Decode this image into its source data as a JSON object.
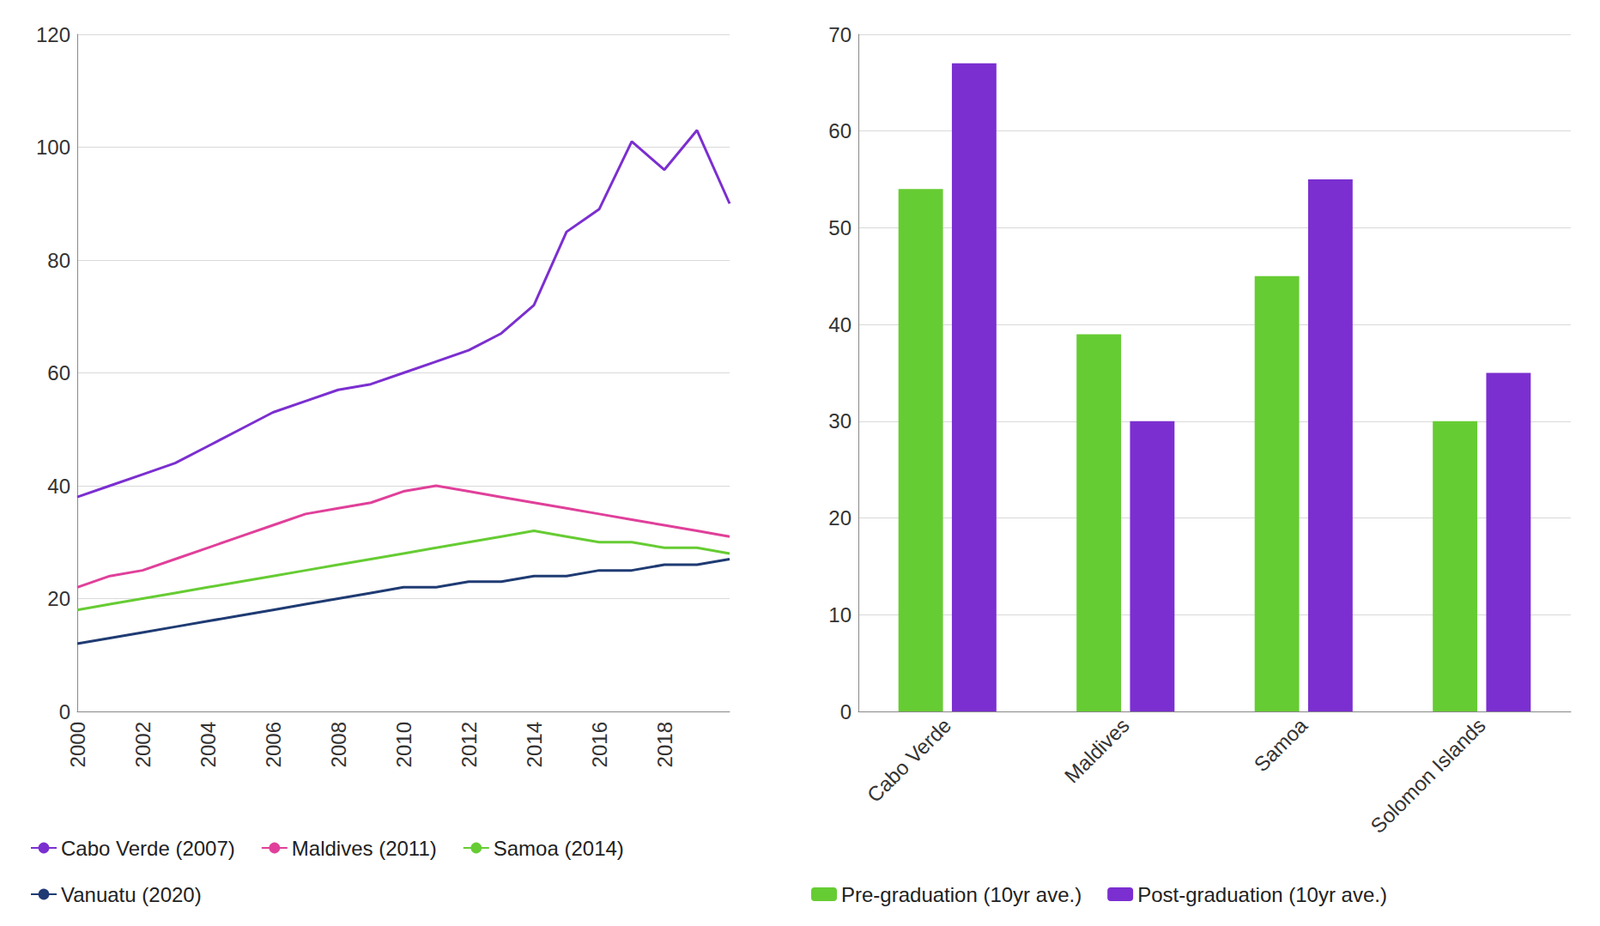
{
  "chart_data": [
    {
      "type": "line",
      "categories": [
        "2000",
        null,
        "2002",
        null,
        "2004",
        null,
        "2006",
        null,
        "2008",
        null,
        "2010",
        null,
        "2012",
        null,
        "2014",
        null,
        "2016",
        null,
        "2018",
        null,
        null
      ],
      "series": [
        {
          "name": "Cabo Verde (2007)",
          "color": "#7b2fd0",
          "values": [
            38,
            40,
            42,
            44,
            47,
            50,
            53,
            55,
            57,
            58,
            60,
            62,
            64,
            67,
            72,
            85,
            89,
            101,
            96,
            103,
            90
          ]
        },
        {
          "name": "Maldives (2011)",
          "color": "#e0409a",
          "values": [
            22,
            24,
            25,
            27,
            29,
            31,
            33,
            35,
            36,
            37,
            39,
            40,
            39,
            38,
            37,
            36,
            35,
            34,
            33,
            32,
            31
          ]
        },
        {
          "name": "Samoa (2014)",
          "color": "#66cc33",
          "values": [
            18,
            19,
            20,
            21,
            22,
            23,
            24,
            25,
            26,
            27,
            28,
            29,
            30,
            31,
            32,
            31,
            30,
            30,
            29,
            29,
            28
          ]
        },
        {
          "name": "Vanuatu (2020)",
          "color": "#1f3b73",
          "values": [
            12,
            13,
            14,
            15,
            16,
            17,
            18,
            19,
            20,
            21,
            22,
            22,
            23,
            23,
            24,
            24,
            25,
            25,
            26,
            26,
            27
          ]
        }
      ],
      "ylim": [
        0,
        120
      ],
      "yticks": [
        0,
        20,
        40,
        60,
        80,
        100,
        120
      ],
      "grid": true,
      "legend": "bottom"
    },
    {
      "type": "bar",
      "categories": [
        "Cabo Verde",
        "Maldives",
        "Samoa",
        "Solomon Islands"
      ],
      "series": [
        {
          "name": "Pre-graduation (10yr ave.)",
          "color": "#66cc33",
          "values": [
            54,
            39,
            45,
            30
          ]
        },
        {
          "name": "Post-graduation (10yr ave.)",
          "color": "#7b2fd0",
          "values": [
            67,
            30,
            55,
            35
          ]
        }
      ],
      "ylim": [
        0,
        70
      ],
      "yticks": [
        0,
        10,
        20,
        30,
        40,
        50,
        60,
        70
      ],
      "grid": true,
      "legend": "bottom"
    }
  ]
}
